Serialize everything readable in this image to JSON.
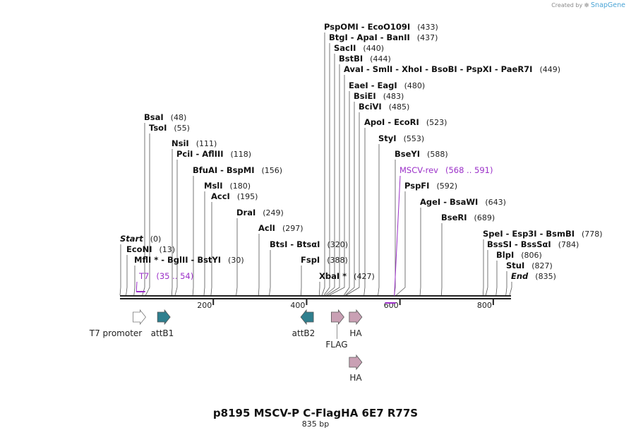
{
  "branding": {
    "created_by": "Created by",
    "app": "SnapGene"
  },
  "plasmid": {
    "name": "p8195 MSCV-P C-FlagHA 6E7 R77S",
    "length": "835 bp"
  },
  "scale": {
    "start": 0,
    "end": 835,
    "ticks": [
      200,
      400,
      600,
      800
    ]
  },
  "sites": [
    {
      "name": "PspOMI  -  EcoO109I",
      "pos": 433,
      "label": "(433)"
    },
    {
      "name": "BtgI  -  ApaI  -  BanII",
      "pos": 437,
      "label": "(437)"
    },
    {
      "name": "SacII",
      "pos": 440,
      "label": "(440)"
    },
    {
      "name": "BstBI",
      "pos": 444,
      "label": "(444)"
    },
    {
      "name": "AvaI  -  SmlI  -  XhoI  -  BsoBI  -  PspXI  -  PaeR7I",
      "pos": 449,
      "label": "(449)"
    },
    {
      "name": "EaeI  -  EagI",
      "pos": 480,
      "label": "(480)"
    },
    {
      "name": "BsiEI",
      "pos": 483,
      "label": "(483)"
    },
    {
      "name": "BciVI",
      "pos": 485,
      "label": "(485)"
    },
    {
      "name": "ApoI  -  EcoRI",
      "pos": 523,
      "label": "(523)"
    },
    {
      "name": "StyI",
      "pos": 553,
      "label": "(553)"
    },
    {
      "name": "BseYI",
      "pos": 588,
      "label": "(588)"
    },
    {
      "name": "PspFI",
      "pos": 592,
      "label": "(592)"
    },
    {
      "name": "AgeI  -  BsaWI",
      "pos": 643,
      "label": "(643)"
    },
    {
      "name": "BseRI",
      "pos": 689,
      "label": "(689)"
    },
    {
      "name": "SpeI  -  Esp3I  -  BsmBI",
      "pos": 778,
      "label": "(778)"
    },
    {
      "name": "BssSI  -  BssSαI",
      "pos": 784,
      "label": "(784)"
    },
    {
      "name": "BlpI",
      "pos": 806,
      "label": "(806)"
    },
    {
      "name": "StuI",
      "pos": 827,
      "label": "(827)"
    },
    {
      "name": "End",
      "pos": 835,
      "label": "(835)"
    },
    {
      "name": "BsaI",
      "pos": 48,
      "label": "(48)"
    },
    {
      "name": "TsoI",
      "pos": 55,
      "label": "(55)"
    },
    {
      "name": "NsiI",
      "pos": 111,
      "label": "(111)"
    },
    {
      "name": "PciI  -  AflIII",
      "pos": 118,
      "label": "(118)"
    },
    {
      "name": "BfuAI  -  BspMI",
      "pos": 156,
      "label": "(156)"
    },
    {
      "name": "MslI",
      "pos": 180,
      "label": "(180)"
    },
    {
      "name": "AccI",
      "pos": 195,
      "label": "(195)"
    },
    {
      "name": "DraI",
      "pos": 249,
      "label": "(249)"
    },
    {
      "name": "AclI",
      "pos": 297,
      "label": "(297)"
    },
    {
      "name": "BtsI  -  BtsαI",
      "pos": 320,
      "label": "(320)"
    },
    {
      "name": "FspI",
      "pos": 388,
      "label": "(388)"
    },
    {
      "name": "XbaI *",
      "pos": 427,
      "label": "(427)"
    },
    {
      "name": "Start",
      "pos": 0,
      "label": "(0)"
    },
    {
      "name": "EcoNI",
      "pos": 13,
      "label": "(13)"
    },
    {
      "name": "MflI *  -  BglII  -  BstYI",
      "pos": 30,
      "label": "(30)"
    }
  ],
  "primers": [
    {
      "name": "MSCV-rev",
      "range": "(568 .. 591)",
      "start": 568,
      "end": 591
    },
    {
      "name": "T7",
      "range": "(35 .. 54)",
      "start": 35,
      "end": 54
    }
  ],
  "features": [
    {
      "name": "T7 promoter",
      "start": 31,
      "end": 49,
      "color": "#ffffff"
    },
    {
      "name": "attB1",
      "start": 80,
      "end": 105,
      "color": "#2f7f8e"
    },
    {
      "name": "attB2",
      "start": 390,
      "end": 415,
      "color": "#2f7f8e"
    },
    {
      "name": "FLAG",
      "start": 453,
      "end": 477,
      "color": "#c9a0b4"
    },
    {
      "name": "HA",
      "start": 490,
      "end": 517,
      "color": "#c9a0b4"
    },
    {
      "name": "HA",
      "start": 490,
      "end": 517,
      "color": "#c9a0b4"
    }
  ],
  "colors": {
    "primer": "#9b30c8",
    "backbone": "#222222",
    "site_line": "#555555"
  }
}
